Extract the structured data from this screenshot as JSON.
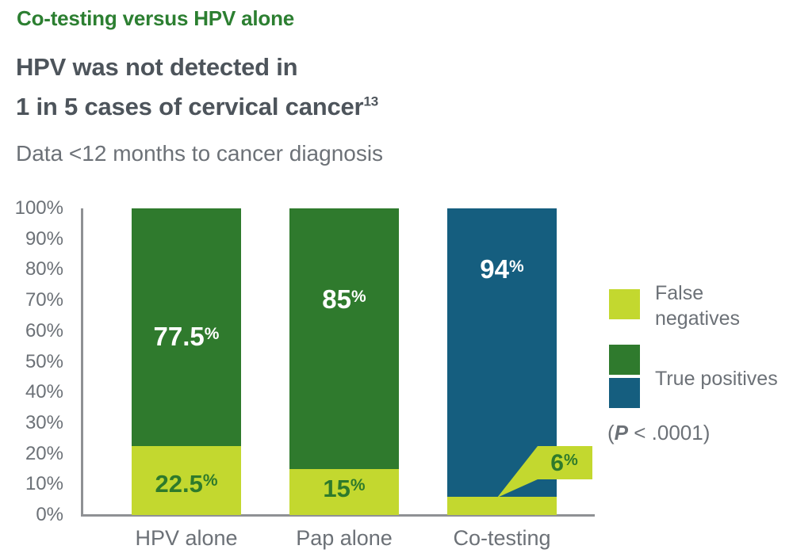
{
  "header": {
    "eyebrow": "Co-testing versus HPV alone",
    "title_line1": "HPV was not detected in",
    "title_line2": "1 in 5 cases of cervical cancer",
    "title_superscript": "13",
    "subtitle": "Data <12 months to cancer diagnosis"
  },
  "colors": {
    "eyebrow_green": "#2c7f31",
    "heading_gray": "#4d545b",
    "body_gray": "#6c7177",
    "axis_gray": "#8f9194",
    "light_green": "#c3d82f",
    "dark_green": "#2f7a2d",
    "blue": "#155e7f",
    "label_on_light_green": "#2e7a2b",
    "label_on_dark": "#ffffff"
  },
  "chart_data": {
    "type": "stacked-bar",
    "title": "Co-testing versus HPV alone",
    "subtitle": "Data <12 months to cancer diagnosis",
    "categories": [
      "HPV alone",
      "Pap alone",
      "Co-testing"
    ],
    "series": [
      {
        "name": "False negatives",
        "values": [
          22.5,
          15,
          6
        ],
        "labels": [
          "22.5",
          "15",
          "6"
        ],
        "label_suffix": "%",
        "colors": [
          "#c3d82f",
          "#c3d82f",
          "#c3d82f"
        ],
        "label_color": "#2e7a2b"
      },
      {
        "name": "True positives",
        "values": [
          77.5,
          85,
          94
        ],
        "labels": [
          "77.5",
          "85",
          "94"
        ],
        "label_suffix": "%",
        "colors": [
          "#2f7a2d",
          "#2f7a2d",
          "#155e7f"
        ],
        "label_color": "#ffffff"
      }
    ],
    "ylim": [
      0,
      100
    ],
    "yticks": [
      "100%",
      "90%",
      "80%",
      "70%",
      "60%",
      "50%",
      "40%",
      "30%",
      "20%",
      "10%",
      "0%"
    ],
    "grid": false,
    "legend_position": "right",
    "legend": [
      {
        "lines": [
          "False",
          "negatives"
        ],
        "swatches": [
          "#c3d82f"
        ]
      },
      {
        "lines": [
          "True positives"
        ],
        "swatches": [
          "#2f7a2d",
          "#155e7f"
        ]
      }
    ],
    "callout": {
      "bar": "Co-testing",
      "value": "6",
      "suffix": "%"
    },
    "p_value": {
      "prefix": "(",
      "symbol": "P",
      "rest": " < .0001)"
    }
  }
}
